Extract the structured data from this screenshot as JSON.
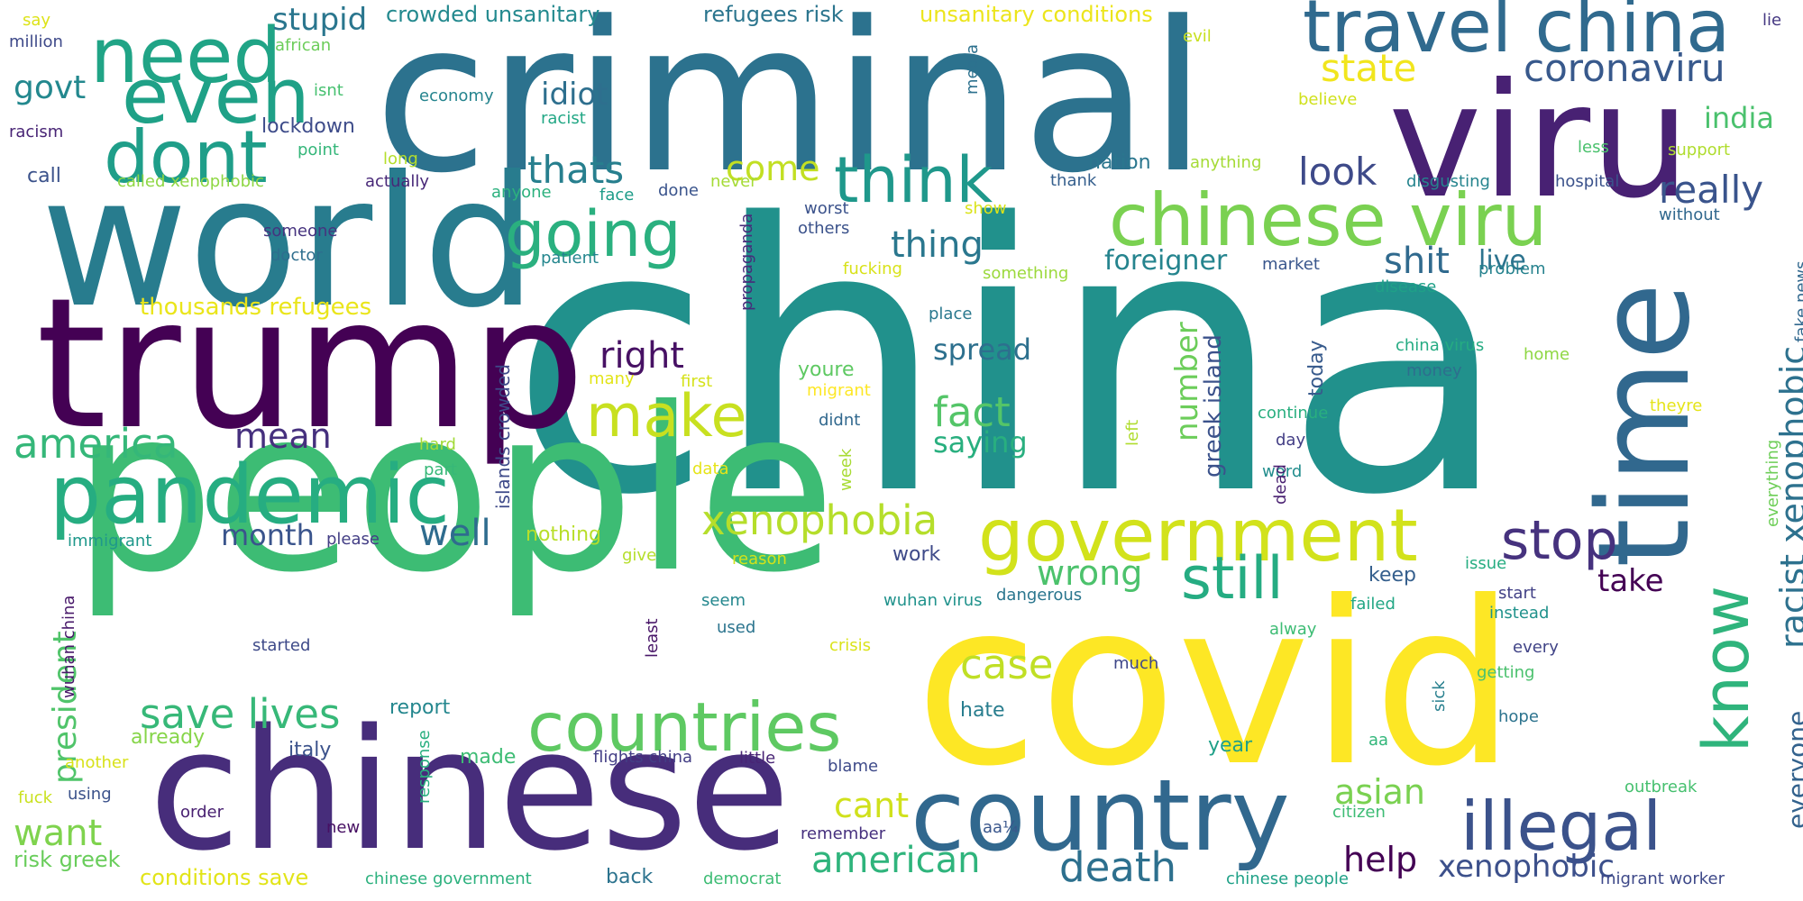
{
  "words": [
    {
      "text": "china",
      "color": "#21918c"
    },
    {
      "text": "criminal",
      "color": "#2c728e"
    },
    {
      "text": "people",
      "color": "#3dbc74"
    },
    {
      "text": "covid",
      "color": "#fde725"
    },
    {
      "text": "world",
      "color": "#287c8e"
    },
    {
      "text": "trump",
      "color": "#440154"
    },
    {
      "text": "chinese",
      "color": "#472d7b"
    },
    {
      "text": "viru",
      "color": "#482173"
    },
    {
      "text": "time",
      "color": "#31688e"
    },
    {
      "text": "country",
      "color": "#31688e"
    },
    {
      "text": "need",
      "color": "#20a486"
    },
    {
      "text": "even",
      "color": "#1fa187"
    },
    {
      "text": "dont",
      "color": "#1f9e89"
    },
    {
      "text": "pandemic",
      "color": "#26ad81"
    },
    {
      "text": "travel china",
      "color": "#306a8e"
    },
    {
      "text": "chinese viru",
      "color": "#7ad151"
    },
    {
      "text": "government",
      "color": "#d2e21b"
    },
    {
      "text": "countries",
      "color": "#5ec962"
    },
    {
      "text": "illegal",
      "color": "#3b528b"
    },
    {
      "text": "think",
      "color": "#1f988b"
    },
    {
      "text": "going",
      "color": "#2ab07f"
    },
    {
      "text": "know",
      "color": "#2fb47c"
    },
    {
      "text": "make",
      "color": "#c8e020"
    },
    {
      "text": "still",
      "color": "#25ac82"
    },
    {
      "text": "stop",
      "color": "#46327e"
    },
    {
      "text": "america",
      "color": "#35b779"
    },
    {
      "text": "xenophobia",
      "color": "#b5de2b"
    },
    {
      "text": "death",
      "color": "#2d708e"
    },
    {
      "text": "american",
      "color": "#2fb47c"
    },
    {
      "text": "case",
      "color": "#c0df25"
    },
    {
      "text": "fact",
      "color": "#54c568"
    },
    {
      "text": "save lives",
      "color": "#37b878"
    },
    {
      "text": "coronaviru",
      "color": "#38598c"
    },
    {
      "text": "state",
      "color": "#f1e51d"
    },
    {
      "text": "racist xenophobic",
      "color": "#2d718e"
    },
    {
      "text": "really",
      "color": "#3a548c"
    },
    {
      "text": "india",
      "color": "#4ac16d"
    },
    {
      "text": "thats",
      "color": "#277f8e"
    },
    {
      "text": "idiot",
      "color": "#2e6f8e"
    },
    {
      "text": "govt",
      "color": "#23888e"
    },
    {
      "text": "stupid",
      "color": "#2a768e"
    },
    {
      "text": "look",
      "color": "#3e4a89"
    },
    {
      "text": "come",
      "color": "#c2df23"
    },
    {
      "text": "thing",
      "color": "#2a778e"
    },
    {
      "text": "shit",
      "color": "#306a8e"
    },
    {
      "text": "live",
      "color": "#2c738e"
    },
    {
      "text": "foreigner",
      "color": "#25848e"
    },
    {
      "text": "right",
      "color": "#471164"
    },
    {
      "text": "spread",
      "color": "#2d708e"
    },
    {
      "text": "number",
      "color": "#6ccd5a"
    },
    {
      "text": "greek island",
      "color": "#3b528b"
    },
    {
      "text": "mean",
      "color": "#46307e"
    },
    {
      "text": "saying",
      "color": "#29af7f"
    },
    {
      "text": "well",
      "color": "#2f6c8e"
    },
    {
      "text": "month",
      "color": "#3a548c"
    },
    {
      "text": "wrong",
      "color": "#4cc26c"
    },
    {
      "text": "take",
      "color": "#440154"
    },
    {
      "text": "help",
      "color": "#440154"
    },
    {
      "text": "xenophobic",
      "color": "#3c508b"
    },
    {
      "text": "asian",
      "color": "#7ad151"
    },
    {
      "text": "cant",
      "color": "#d0e11c"
    },
    {
      "text": "everyone",
      "color": "#33628d"
    },
    {
      "text": "want",
      "color": "#7fd34e"
    },
    {
      "text": "president",
      "color": "#50c46a"
    },
    {
      "text": "thousands refugees",
      "color": "#eae51a"
    },
    {
      "text": "refugees risk",
      "color": "#2b758e"
    },
    {
      "text": "crowded unsanitary",
      "color": "#23898e"
    },
    {
      "text": "unsanitary conditions",
      "color": "#ece51b"
    },
    {
      "text": "conditions save",
      "color": "#e2e418"
    },
    {
      "text": "risk greek",
      "color": "#69cd5b"
    },
    {
      "text": "islands crowded",
      "color": "#3e4a89"
    },
    {
      "text": "say",
      "color": "#dde318"
    },
    {
      "text": "million",
      "color": "#3e4989"
    },
    {
      "text": "african",
      "color": "#6ccd5a"
    },
    {
      "text": "isnt",
      "color": "#46c06f"
    },
    {
      "text": "racism",
      "color": "#482475"
    },
    {
      "text": "call",
      "color": "#3b528b"
    },
    {
      "text": "called xenophobic",
      "color": "#8fd744"
    },
    {
      "text": "lockdown",
      "color": "#3e4c8a"
    },
    {
      "text": "point",
      "color": "#34b679"
    },
    {
      "text": "economy",
      "color": "#25848e"
    },
    {
      "text": "racist",
      "color": "#22a785"
    },
    {
      "text": "long",
      "color": "#b5de2b"
    },
    {
      "text": "actually",
      "color": "#482878"
    },
    {
      "text": "anyone",
      "color": "#2cb17e"
    },
    {
      "text": "face",
      "color": "#1e9c89"
    },
    {
      "text": "done",
      "color": "#3a548c"
    },
    {
      "text": "never",
      "color": "#a5db36"
    },
    {
      "text": "someone",
      "color": "#46337f"
    },
    {
      "text": "doctor",
      "color": "#2e6e8e"
    },
    {
      "text": "patient",
      "color": "#24868e"
    },
    {
      "text": "propaganda",
      "color": "#472c7a"
    },
    {
      "text": "media",
      "color": "#2d718e"
    },
    {
      "text": "evil",
      "color": "#c8e020"
    },
    {
      "text": "believe",
      "color": "#d0e11c"
    },
    {
      "text": "nation",
      "color": "#2a768e"
    },
    {
      "text": "anything",
      "color": "#a5db36"
    },
    {
      "text": "thank",
      "color": "#355f8d"
    },
    {
      "text": "worst",
      "color": "#3b528b"
    },
    {
      "text": "others",
      "color": "#3b528b"
    },
    {
      "text": "show",
      "color": "#dae319"
    },
    {
      "text": "fucking",
      "color": "#d8e219"
    },
    {
      "text": "something",
      "color": "#9bd93c"
    },
    {
      "text": "market",
      "color": "#39568c"
    },
    {
      "text": "disgusting",
      "color": "#25848e"
    },
    {
      "text": "hospital",
      "color": "#3b528b"
    },
    {
      "text": "less",
      "color": "#4ac16d"
    },
    {
      "text": "support",
      "color": "#b0dd2f"
    },
    {
      "text": "lie",
      "color": "#453882"
    },
    {
      "text": "without",
      "color": "#31688e"
    },
    {
      "text": "problem",
      "color": "#26828e"
    },
    {
      "text": "disease",
      "color": "#1fa088"
    },
    {
      "text": "fake news",
      "color": "#31688e"
    },
    {
      "text": "place",
      "color": "#2a788e"
    },
    {
      "text": "many",
      "color": "#e2e418"
    },
    {
      "text": "first",
      "color": "#d5e21a"
    },
    {
      "text": "youre",
      "color": "#5ec962"
    },
    {
      "text": "migrant",
      "color": "#fde725"
    },
    {
      "text": "didnt",
      "color": "#31688e"
    },
    {
      "text": "today",
      "color": "#375a8c"
    },
    {
      "text": "continue",
      "color": "#29af7f"
    },
    {
      "text": "day",
      "color": "#433e85"
    },
    {
      "text": "word",
      "color": "#228d8d"
    },
    {
      "text": "dead",
      "color": "#481f70"
    },
    {
      "text": "left",
      "color": "#b0dd2f"
    },
    {
      "text": "china virus",
      "color": "#25ab82"
    },
    {
      "text": "money",
      "color": "#2e6e8e"
    },
    {
      "text": "home",
      "color": "#8fd744"
    },
    {
      "text": "theyre",
      "color": "#e5e419"
    },
    {
      "text": "everything",
      "color": "#6ece58"
    },
    {
      "text": "hard",
      "color": "#a2da37"
    },
    {
      "text": "part",
      "color": "#37b878"
    },
    {
      "text": "data",
      "color": "#e5e419"
    },
    {
      "text": "week",
      "color": "#a8db34"
    },
    {
      "text": "immigrant",
      "color": "#1f988b"
    },
    {
      "text": "please",
      "color": "#433e85"
    },
    {
      "text": "nothing",
      "color": "#b8de29"
    },
    {
      "text": "give",
      "color": "#b5de2b"
    },
    {
      "text": "reason",
      "color": "#d2e21b"
    },
    {
      "text": "work",
      "color": "#3e4a89"
    },
    {
      "text": "keep",
      "color": "#355f8d"
    },
    {
      "text": "failed",
      "color": "#22a785"
    },
    {
      "text": "issue",
      "color": "#26ad81"
    },
    {
      "text": "start",
      "color": "#424186"
    },
    {
      "text": "instead",
      "color": "#20928c"
    },
    {
      "text": "seem",
      "color": "#24878e"
    },
    {
      "text": "used",
      "color": "#2b748e"
    },
    {
      "text": "wuhan virus",
      "color": "#20928c"
    },
    {
      "text": "dangerous",
      "color": "#2a768e"
    },
    {
      "text": "least",
      "color": "#481668"
    },
    {
      "text": "wuhan china",
      "color": "#48186a"
    },
    {
      "text": "started",
      "color": "#3e4a89"
    },
    {
      "text": "crisis",
      "color": "#dae319"
    },
    {
      "text": "alway",
      "color": "#3dbc74"
    },
    {
      "text": "much",
      "color": "#3f4889"
    },
    {
      "text": "sick",
      "color": "#277f8e"
    },
    {
      "text": "every",
      "color": "#414487"
    },
    {
      "text": "getting",
      "color": "#4ac16d"
    },
    {
      "text": "hate",
      "color": "#287d8e"
    },
    {
      "text": "hope",
      "color": "#2c738e"
    },
    {
      "text": "report",
      "color": "#24878e"
    },
    {
      "text": "already",
      "color": "#86d549"
    },
    {
      "text": "italy",
      "color": "#3b528b"
    },
    {
      "text": "another",
      "color": "#d8e219"
    },
    {
      "text": "response",
      "color": "#29af7f"
    },
    {
      "text": "made",
      "color": "#3dbc74"
    },
    {
      "text": "flights china",
      "color": "#433e85"
    },
    {
      "text": "little",
      "color": "#482475"
    },
    {
      "text": "blame",
      "color": "#3e4a89"
    },
    {
      "text": "year",
      "color": "#1fa088"
    },
    {
      "text": "aa",
      "color": "#32b67a"
    },
    {
      "text": "outbreak",
      "color": "#46c06f"
    },
    {
      "text": "fuck",
      "color": "#cae11f"
    },
    {
      "text": "using",
      "color": "#3b528b"
    },
    {
      "text": "order",
      "color": "#482071"
    },
    {
      "text": "new",
      "color": "#471063"
    },
    {
      "text": "remember",
      "color": "#46307e"
    },
    {
      "text": "citizen",
      "color": "#3dbc74"
    },
    {
      "text": "aa¼",
      "color": "#39568c"
    },
    {
      "text": "chinese government",
      "color": "#2cb17e"
    },
    {
      "text": "back",
      "color": "#2c738e"
    },
    {
      "text": "democrat",
      "color": "#3dbc74"
    },
    {
      "text": "chinese people",
      "color": "#1fa187"
    },
    {
      "text": "migrant worker",
      "color": "#3e4989"
    }
  ]
}
